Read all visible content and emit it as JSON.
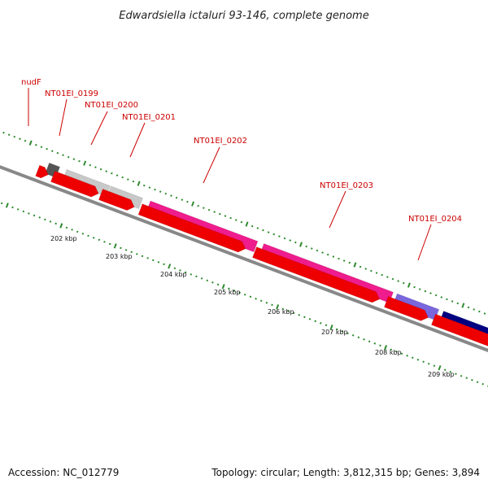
{
  "title": "Edwardsiella ictaluri 93-146, complete genome",
  "footer": {
    "accession": "Accession: NC_012779",
    "stats": "Topology: circular; Length: 3,812,315 bp; Genes: 3,894"
  },
  "gene_labels": [
    "nudF",
    "NT01EI_0199",
    "NT01EI_0200",
    "NT01EI_0201",
    "NT01EI_0202",
    "NT01EI_0203",
    "NT01EI_0204"
  ],
  "kbp_labels": [
    "202 kbp",
    "203 kbp",
    "204 kbp",
    "205 kbp",
    "206 kbp",
    "207 kbp",
    "208 kbp",
    "209 kbp"
  ],
  "colors": {
    "cds": "#ee0000",
    "backbone": "#888888",
    "tick": "#2e8b2e",
    "label": "#cc0000",
    "dark_gray": "#555555",
    "light_gray": "#c8c8c8",
    "magenta": "#ee1c8c",
    "lavender": "#7a66dd",
    "navy": "#000080"
  }
}
